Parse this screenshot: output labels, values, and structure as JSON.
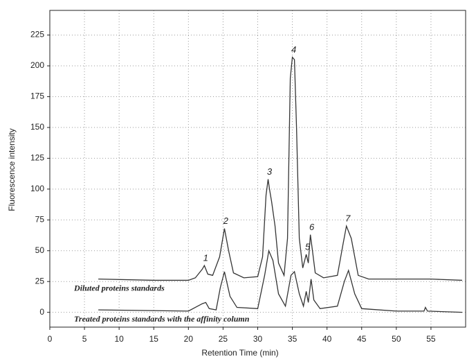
{
  "chart_data": {
    "type": "line",
    "xlabel": "Retention Time (min)",
    "ylabel": "Fluorescence intensity",
    "xlim": [
      0,
      60
    ],
    "xticks": [
      0,
      5,
      10,
      15,
      20,
      25,
      30,
      35,
      40,
      45,
      50,
      55
    ],
    "ylim": [
      -12,
      245
    ],
    "yticks": [
      0,
      25,
      50,
      75,
      100,
      125,
      150,
      175,
      200,
      225
    ],
    "grid": true,
    "series": [
      {
        "name": "Diluted proteins standards",
        "color": "#333333",
        "x": [
          7,
          15,
          20,
          21,
          22,
          22.3,
          22.8,
          23.5,
          24.5,
          25.2,
          25.8,
          26.5,
          28,
          30,
          30.7,
          31.2,
          31.5,
          31.7,
          32,
          32.5,
          33,
          33.8,
          34.3,
          34.7,
          35,
          35.3,
          35.6,
          36,
          36.5,
          37,
          37.3,
          37.6,
          37.9,
          38.3,
          39.5,
          41.5,
          42.3,
          42.8,
          43.5,
          44,
          44.5,
          46,
          50,
          55,
          59.5
        ],
        "values": [
          27,
          26,
          26,
          28,
          35,
          38,
          31,
          30,
          45,
          68,
          50,
          32,
          28,
          29,
          45,
          95,
          108,
          100,
          90,
          70,
          40,
          30,
          60,
          190,
          207,
          205,
          150,
          60,
          36,
          47,
          40,
          63,
          50,
          32,
          28,
          30,
          55,
          70,
          60,
          45,
          30,
          27,
          27,
          27,
          26
        ]
      },
      {
        "name": "Treated proteins standards with the affinity column",
        "color": "#333333",
        "x": [
          7,
          20,
          22,
          22.5,
          23,
          24,
          24.6,
          25.2,
          26,
          27,
          30,
          31,
          31.6,
          32.2,
          33,
          34,
          34.8,
          35.3,
          36,
          36.6,
          37,
          37.3,
          37.7,
          38.1,
          39,
          41.5,
          42.5,
          43.1,
          44,
          45,
          50,
          54,
          54.2,
          54.5,
          59.5
        ],
        "values": [
          2,
          1,
          7,
          8,
          3,
          2,
          20,
          33,
          13,
          4,
          3,
          30,
          50,
          42,
          15,
          5,
          30,
          33,
          15,
          5,
          17,
          8,
          27,
          10,
          3,
          5,
          25,
          34,
          15,
          3,
          1,
          1,
          4,
          1,
          0
        ]
      }
    ],
    "annotations": [
      {
        "text": "1",
        "x": 22.3,
        "y": 38
      },
      {
        "text": "2",
        "x": 25.2,
        "y": 68
      },
      {
        "text": "3",
        "x": 31.5,
        "y": 108
      },
      {
        "text": "4",
        "x": 35,
        "y": 207
      },
      {
        "text": "5",
        "x": 37,
        "y": 47
      },
      {
        "text": "6",
        "x": 37.6,
        "y": 63
      },
      {
        "text": "7",
        "x": 42.8,
        "y": 70
      }
    ]
  }
}
